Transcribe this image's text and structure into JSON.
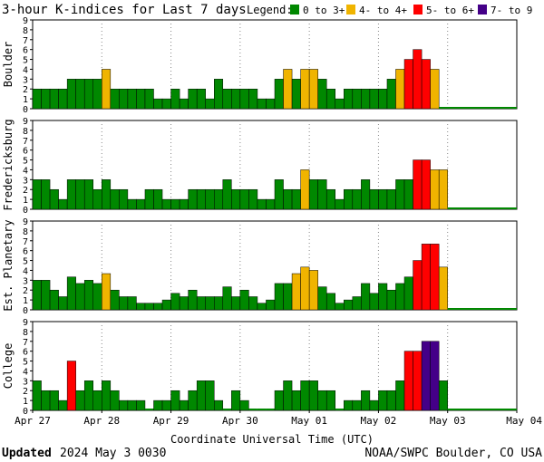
{
  "header": {
    "title": "3-hour K-indices for Last 7 days",
    "legend_label": "Legend:"
  },
  "legend": [
    {
      "label": "0 to 3+",
      "color": "#008800"
    },
    {
      "label": "4- to 4+",
      "color": "#f0b400"
    },
    {
      "label": "5- to 6+",
      "color": "#ff0000"
    },
    {
      "label": "7- to 9",
      "color": "#440088"
    }
  ],
  "colors": {
    "quiet": "#008800",
    "active": "#f0b400",
    "storm": "#ff0000",
    "severe": "#440088",
    "baseline": "#008800",
    "grid": "#888888"
  },
  "footer": {
    "updated_label": "Updated",
    "updated_time": "2024 May  3 0030",
    "source": "NOAA/SWPC Boulder, CO USA",
    "xlabel": "Coordinate Universal Time (UTC)"
  },
  "chart_data": {
    "type": "bar",
    "x_tick_labels": [
      "Apr 27",
      "Apr 28",
      "Apr 29",
      "Apr 30",
      "May 01",
      "May 02",
      "May 03",
      "May 04"
    ],
    "y_tick_labels": [
      "0",
      "1",
      "2",
      "3",
      "4",
      "5",
      "6",
      "7",
      "8",
      "9"
    ],
    "ylim": [
      0,
      9
    ],
    "bins_per_panel": 56,
    "panels": [
      {
        "name": "Boulder",
        "values": [
          2,
          2,
          2,
          2,
          3,
          3,
          3,
          3,
          4,
          2,
          2,
          2,
          2,
          2,
          1,
          1,
          2,
          1,
          2,
          2,
          1,
          3,
          2,
          2,
          2,
          2,
          1,
          1,
          3,
          4,
          3,
          4,
          4,
          3,
          2,
          1,
          2,
          2,
          2,
          2,
          2,
          3,
          4,
          5,
          6,
          5,
          4
        ]
      },
      {
        "name": "Fredericksburg",
        "values": [
          3,
          3,
          2,
          1,
          3,
          3,
          3,
          2,
          3,
          2,
          2,
          1,
          1,
          2,
          2,
          1,
          1,
          1,
          2,
          2,
          2,
          2,
          3,
          2,
          2,
          2,
          1,
          1,
          3,
          2,
          2,
          4,
          3,
          3,
          2,
          1,
          2,
          2,
          3,
          2,
          2,
          2,
          3,
          3,
          5,
          5,
          4,
          4
        ]
      },
      {
        "name": "Est. Planetary",
        "values": [
          3,
          3,
          2,
          1.33,
          3.33,
          2.67,
          3,
          2.67,
          3.67,
          2,
          1.33,
          1.33,
          0.67,
          0.67,
          0.67,
          1,
          1.67,
          1.33,
          2,
          1.33,
          1.33,
          1.33,
          2.33,
          1.33,
          2,
          1.33,
          0.67,
          1,
          2.67,
          2.67,
          3.67,
          4.33,
          4,
          2.33,
          1.67,
          0.67,
          1,
          1.33,
          2.67,
          1.67,
          2.67,
          2,
          2.67,
          3.33,
          5,
          6.67,
          6.67,
          4.33
        ]
      },
      {
        "name": "College",
        "values": [
          3,
          2,
          2,
          1,
          5,
          2,
          3,
          2,
          3,
          2,
          1,
          1,
          1,
          0,
          1,
          1,
          2,
          1,
          2,
          3,
          3,
          1,
          0,
          2,
          1,
          0,
          0,
          0,
          2,
          3,
          2,
          3,
          3,
          2,
          2,
          0,
          1,
          1,
          2,
          1,
          2,
          2,
          3,
          6,
          6,
          7,
          7,
          3
        ]
      }
    ]
  }
}
